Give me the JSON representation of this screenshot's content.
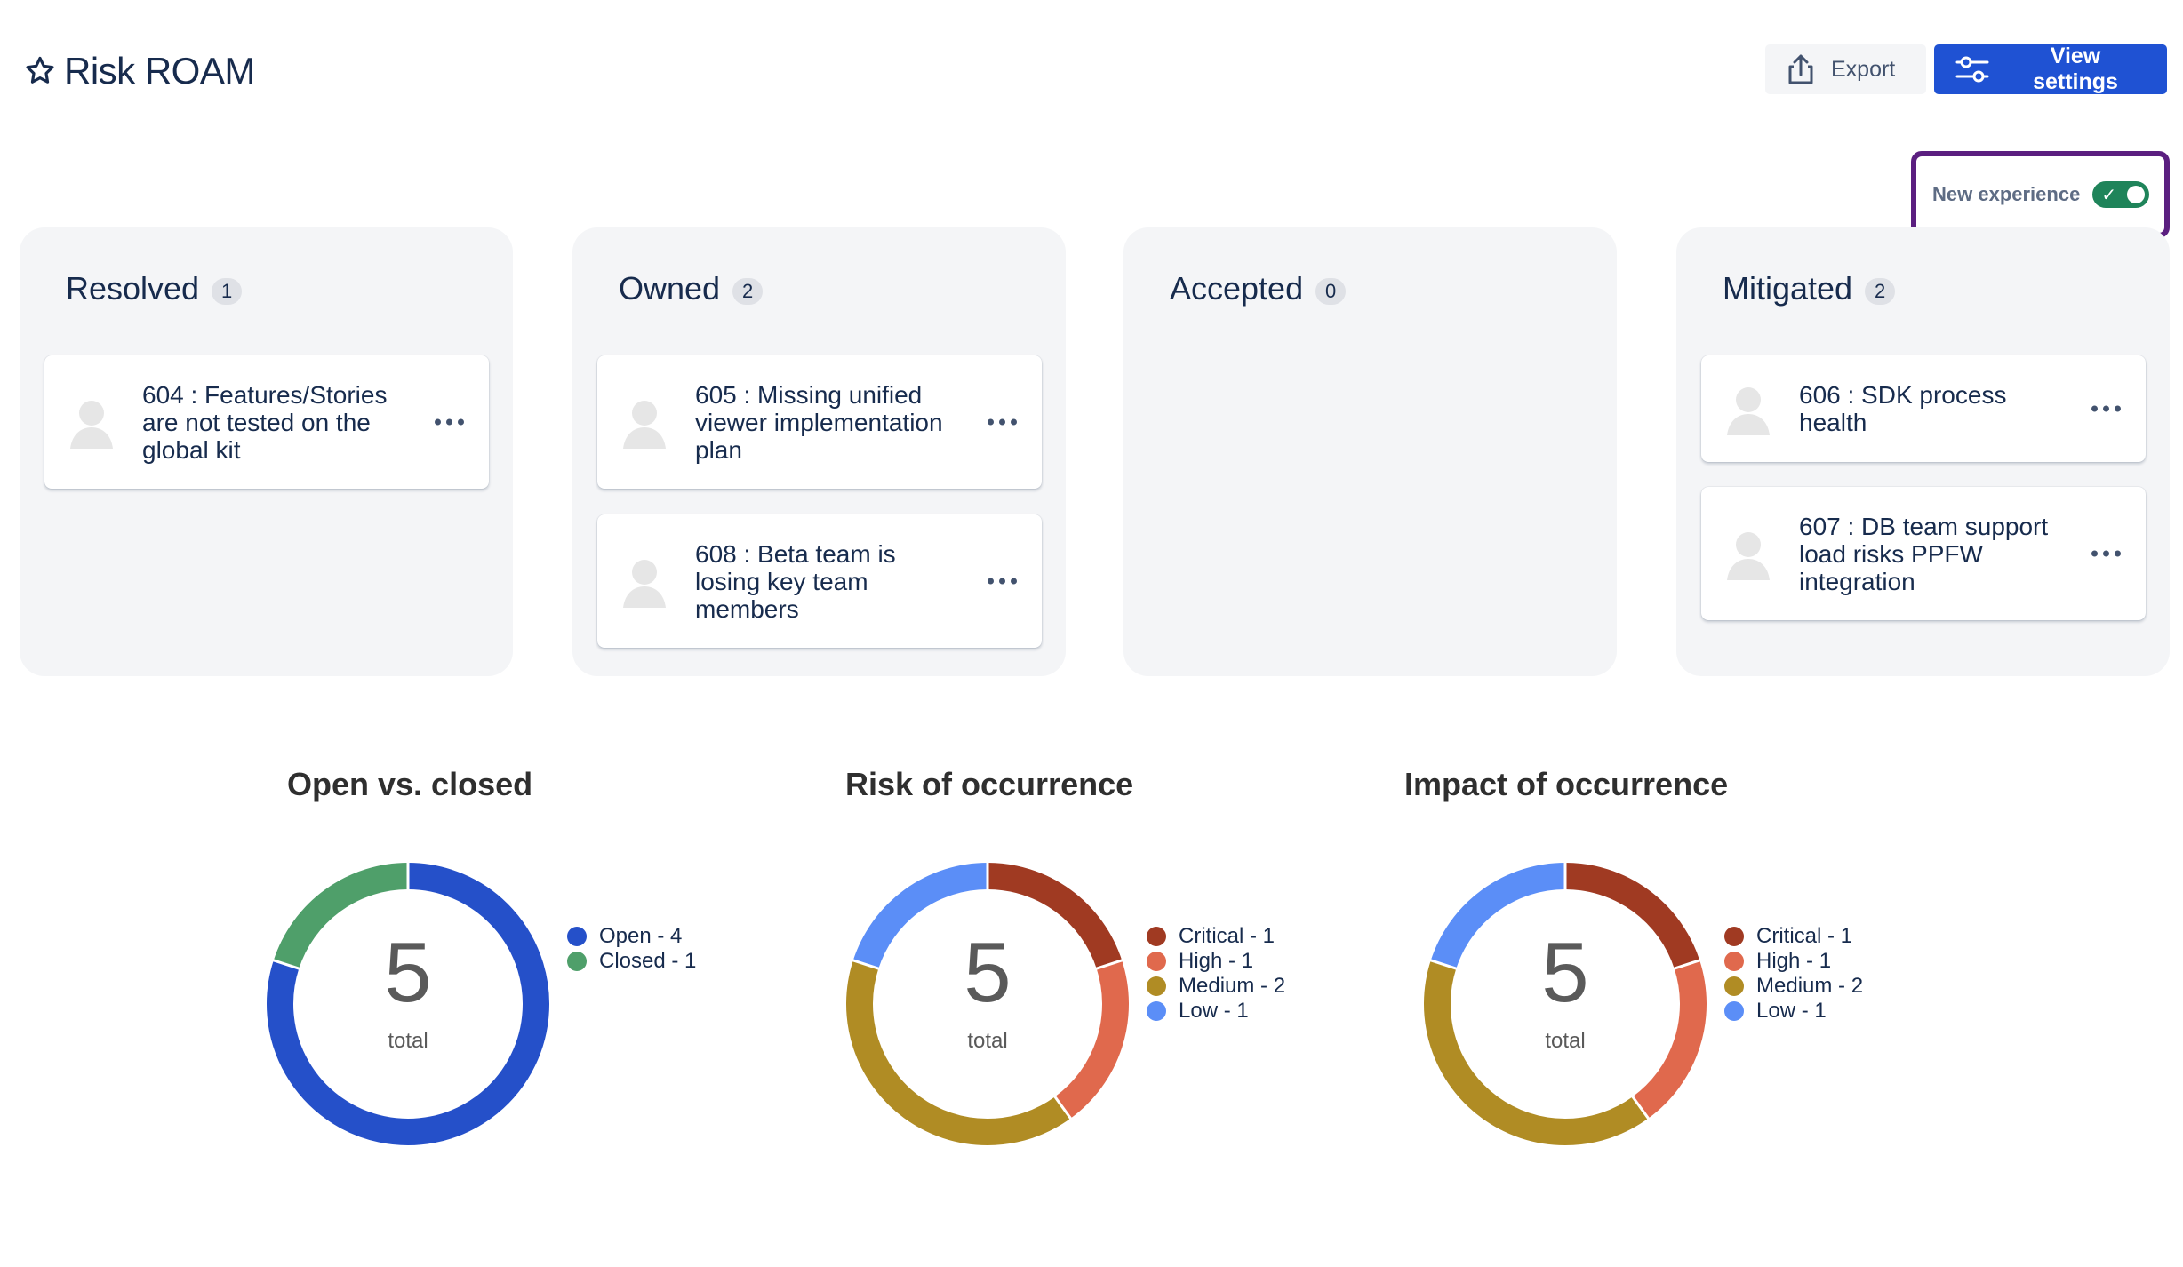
{
  "header": {
    "title": "Risk ROAM"
  },
  "toolbar": {
    "export_label": "Export",
    "view_settings_label": "View settings"
  },
  "toggle": {
    "label": "New experience",
    "on": true
  },
  "columns": [
    {
      "title": "Resolved",
      "count": "1",
      "cards": [
        {
          "text": "604 : Features/Stories are not tested on the global kit"
        }
      ]
    },
    {
      "title": "Owned",
      "count": "2",
      "cards": [
        {
          "text": "605 : Missing unified viewer implementation plan"
        },
        {
          "text": "608 : Beta team is losing key team members"
        }
      ]
    },
    {
      "title": "Accepted",
      "count": "0",
      "cards": []
    },
    {
      "title": "Mitigated",
      "count": "2",
      "cards": [
        {
          "text": "606 : SDK process health"
        },
        {
          "text": "607 : DB team support load risks PPFW integration"
        }
      ]
    }
  ],
  "chart_data": [
    {
      "type": "pie",
      "title": "Open vs. closed",
      "total": "5",
      "total_label": "total",
      "categories": [
        "Open",
        "Closed"
      ],
      "values": [
        4,
        1
      ],
      "legend": [
        "Open - 4",
        "Closed - 1"
      ],
      "colors": [
        "#2550c9",
        "#4f9f6a"
      ]
    },
    {
      "type": "pie",
      "title": "Risk of occurrence",
      "total": "5",
      "total_label": "total",
      "categories": [
        "Critical",
        "High",
        "Medium",
        "Low"
      ],
      "values": [
        1,
        1,
        2,
        1
      ],
      "legend": [
        "Critical - 1",
        "High - 1",
        "Medium - 2",
        "Low - 1"
      ],
      "colors": [
        "#a03a22",
        "#e0694d",
        "#b08c24",
        "#5b8ef7"
      ]
    },
    {
      "type": "pie",
      "title": "Impact of occurrence",
      "total": "5",
      "total_label": "total",
      "categories": [
        "Critical",
        "High",
        "Medium",
        "Low"
      ],
      "values": [
        1,
        1,
        2,
        1
      ],
      "legend": [
        "Critical - 1",
        "High - 1",
        "Medium - 2",
        "Low - 1"
      ],
      "colors": [
        "#a03a22",
        "#e0694d",
        "#b08c24",
        "#5b8ef7"
      ]
    }
  ]
}
